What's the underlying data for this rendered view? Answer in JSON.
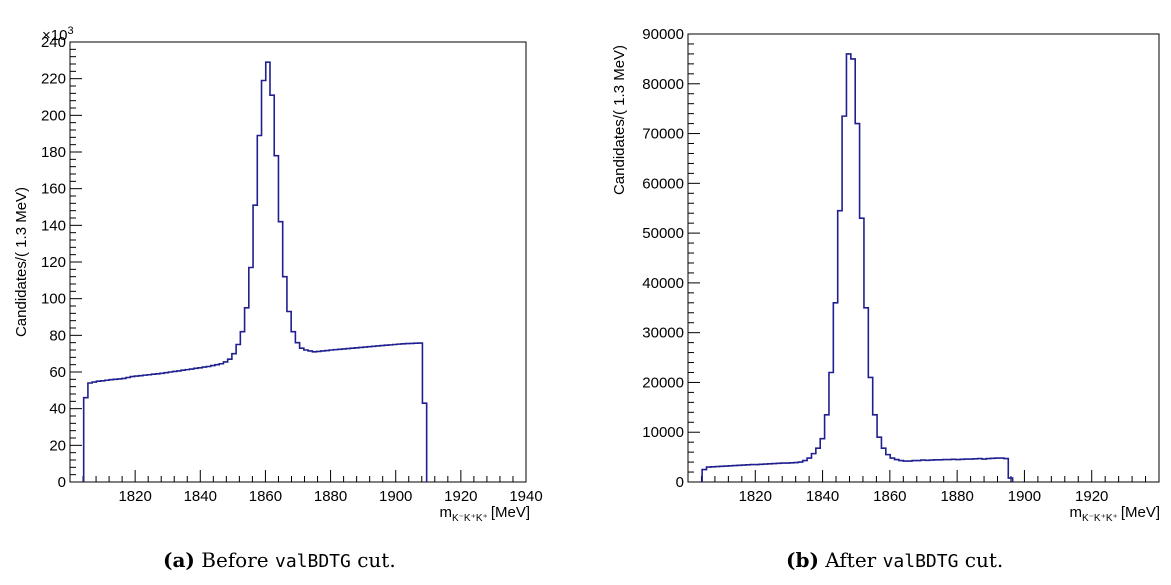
{
  "chart_data": [
    {
      "type": "histogram",
      "xlabel_main": "m",
      "xlabel_sub": "K⁻K⁺K⁺",
      "xlabel_unit": "[MeV]",
      "ylabel": "Candidates/( 1.3 MeV)",
      "exponent_label": "×10",
      "exponent_sup": "3",
      "xlim": [
        1800,
        1940
      ],
      "ylim": [
        0,
        240000
      ],
      "x_ticks": [
        1820,
        1840,
        1860,
        1880,
        1900,
        1920,
        1940
      ],
      "y_ticks": [
        0,
        20,
        40,
        60,
        80,
        100,
        120,
        140,
        160,
        180,
        200,
        220,
        240
      ],
      "y_tick_scale": 1000,
      "bin_start": 1804.2,
      "bin_width": 1.3,
      "values": [
        46000,
        54000,
        54500,
        55000,
        55200,
        55500,
        55800,
        56000,
        56200,
        56500,
        57000,
        57500,
        57800,
        58000,
        58300,
        58500,
        58800,
        59000,
        59300,
        59600,
        60000,
        60300,
        60600,
        61000,
        61300,
        61600,
        62000,
        62300,
        62700,
        63000,
        63500,
        64000,
        64500,
        65500,
        67000,
        70000,
        75000,
        82000,
        95000,
        117000,
        151000,
        189000,
        219000,
        229000,
        211000,
        178000,
        142000,
        112000,
        93000,
        82000,
        76000,
        73000,
        72000,
        71500,
        71000,
        71200,
        71500,
        71700,
        72000,
        72200,
        72400,
        72600,
        72800,
        73000,
        73200,
        73400,
        73600,
        73800,
        74000,
        74200,
        74400,
        74600,
        74800,
        75000,
        75200,
        75400,
        75500,
        75600,
        75700,
        75800,
        43000
      ],
      "line_color": "#1f1f8f",
      "caption_label": "(a)",
      "caption_pre": "Before",
      "caption_code": "valBDTG",
      "caption_post": "cut."
    },
    {
      "type": "histogram",
      "xlabel_main": "m",
      "xlabel_sub": "K⁻K⁺K⁺",
      "xlabel_unit": "[MeV]",
      "ylabel": "Candidates/( 1.3 MeV)",
      "xlim": [
        1800,
        1940
      ],
      "ylim": [
        0,
        90000
      ],
      "x_ticks": [
        1820,
        1840,
        1860,
        1880,
        1900,
        1920
      ],
      "y_ticks": [
        0,
        10000,
        20000,
        30000,
        40000,
        50000,
        60000,
        70000,
        80000,
        90000
      ],
      "y_tick_scale": 1,
      "bin_start": 1804.2,
      "bin_width": 1.3,
      "values": [
        2500,
        3000,
        3050,
        3100,
        3150,
        3200,
        3250,
        3300,
        3350,
        3400,
        3450,
        3500,
        3500,
        3550,
        3600,
        3650,
        3700,
        3750,
        3800,
        3800,
        3850,
        3900,
        4000,
        4300,
        4800,
        5700,
        6800,
        8700,
        13500,
        22000,
        36000,
        54500,
        73500,
        86000,
        85000,
        72000,
        53000,
        35000,
        21000,
        13500,
        9000,
        6800,
        5500,
        4800,
        4500,
        4300,
        4200,
        4200,
        4300,
        4300,
        4400,
        4350,
        4400,
        4450,
        4450,
        4500,
        4500,
        4550,
        4500,
        4550,
        4600,
        4600,
        4650,
        4700,
        4600,
        4700,
        4750,
        4800,
        4800,
        4700,
        800
      ],
      "line_color": "#1f1f8f",
      "caption_label": "(b)",
      "caption_pre": "After",
      "caption_code": "valBDTG",
      "caption_post": "cut."
    }
  ]
}
